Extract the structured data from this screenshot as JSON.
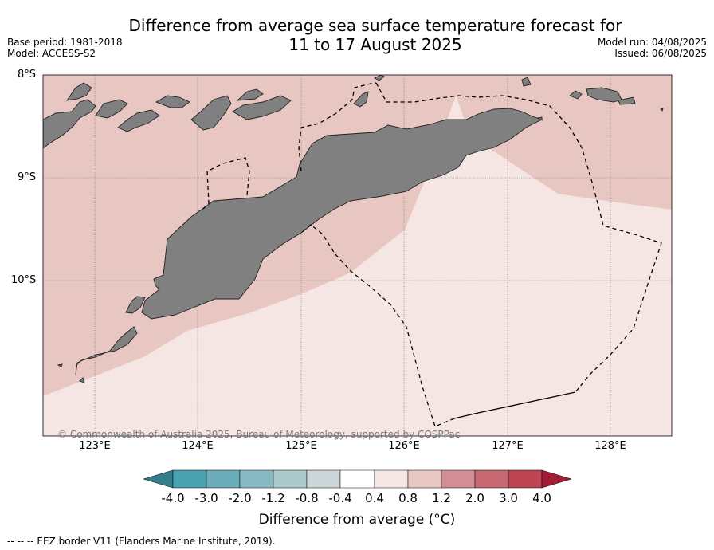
{
  "header": {
    "title_line1": "Difference from average sea surface temperature forecast for",
    "title_line2": "11 to 17 August 2025",
    "base_period": "Base period: 1981-2018",
    "model": "Model: ACCESS-S2",
    "model_run": "Model run: 04/08/2025",
    "issued": "Issued: 06/08/2025"
  },
  "map": {
    "lat_labels": [
      "8°S",
      "9°S",
      "10°S"
    ],
    "lon_labels": [
      "123°E",
      "124°E",
      "125°E",
      "126°E",
      "127°E",
      "128°E"
    ],
    "copyright": "© Commonwealth of Australia 2025, Bureau of Meteorology, supported by COSPPac",
    "land_color": "#808080",
    "band_colors": {
      "0.4 to 0.8": "#f5e6e4",
      "0.8 to 1.2": "#e8c6c1"
    }
  },
  "colorbar": {
    "ticks": [
      "-4.0",
      "-3.0",
      "-2.0",
      "-1.2",
      "-0.8",
      "-0.4",
      "0.4",
      "0.8",
      "1.2",
      "2.0",
      "3.0",
      "4.0"
    ],
    "colors": [
      "#4aa3b0",
      "#6aacb9",
      "#89bac3",
      "#a9c9cb",
      "#ccd6d8",
      "#ffffff",
      "#f5e6e4",
      "#e8c6c1",
      "#d38f95",
      "#c86873",
      "#bd4553"
    ],
    "under_color": "#347e8c",
    "over_color": "#a31c36",
    "label": "Difference from average ($^\\circ$C)",
    "label_display": "Difference from average (°C)"
  },
  "footnote": "-- -- -- EEZ border V11 (Flanders Marine Institute, 2019)."
}
